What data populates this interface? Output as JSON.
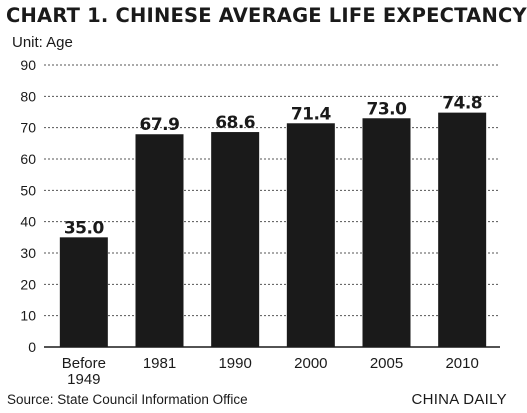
{
  "title": "CHART 1. CHINESE AVERAGE LIFE EXPECTANCY",
  "unit_label": "Unit: Age",
  "source": "Source: State Council Information Office",
  "brand": "CHINA DAILY",
  "chart_data": {
    "type": "bar",
    "title": "CHART 1. CHINESE AVERAGE LIFE EXPECTANCY",
    "ylabel": "Unit: Age",
    "categories": [
      [
        "Before",
        "1949"
      ],
      [
        "1981"
      ],
      [
        "1990"
      ],
      [
        "2000"
      ],
      [
        "2005"
      ],
      [
        "2010"
      ]
    ],
    "values": [
      35.0,
      67.9,
      68.6,
      71.4,
      73.0,
      74.8
    ],
    "data_labels": [
      "35.0",
      "67.9",
      "68.6",
      "71.4",
      "73.0",
      "74.8"
    ],
    "ylim": [
      0,
      90
    ],
    "yticks": [
      0,
      10,
      20,
      30,
      40,
      50,
      60,
      70,
      80,
      90
    ],
    "grid": "dashed horizontal",
    "bar_color": "#1a1a1a"
  }
}
